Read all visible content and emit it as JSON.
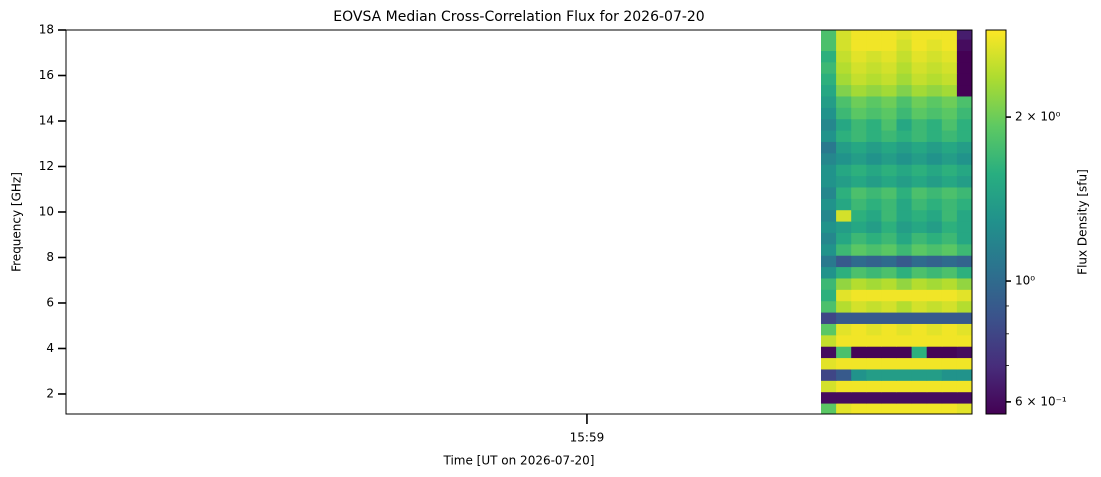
{
  "chart_data": {
    "type": "heatmap",
    "title": "EOVSA Median Cross-Correlation Flux for 2026-07-20",
    "xlabel": "Time [UT on 2026-07-20]",
    "ylabel": "Frequency [GHz]",
    "colorbar_label": "Flux Density [sfu]",
    "colormap": "viridis",
    "clog": true,
    "clim": [
      0.57,
      2.89
    ],
    "cticks": [
      {
        "value": 0.6,
        "label": "6 × 10⁻¹"
      },
      {
        "value": 1,
        "label": "10⁰"
      },
      {
        "value": 2,
        "label": "2 × 10⁰"
      }
    ],
    "cticks_minor": [
      0.7,
      0.8,
      0.9
    ],
    "xlim": [
      57505.5,
      57565.5
    ],
    "xticks": [
      {
        "value": 57540,
        "label": "15:59"
      }
    ],
    "ylim": [
      1.12,
      18
    ],
    "yticks": [
      2,
      4,
      6,
      8,
      10,
      12,
      14,
      16,
      18
    ],
    "x": [
      57556,
      57557,
      57558,
      57559,
      57560,
      57561,
      57562,
      57563,
      57564,
      57565
    ],
    "y": [
      1.35,
      1.85,
      2.35,
      2.85,
      3.35,
      3.85,
      4.35,
      4.85,
      5.35,
      5.85,
      6.35,
      6.85,
      7.35,
      7.85,
      8.35,
      8.85,
      9.35,
      9.85,
      10.35,
      10.85,
      11.35,
      11.85,
      12.35,
      12.85,
      13.35,
      13.85,
      14.35,
      14.85,
      15.35,
      15.85,
      16.35,
      16.85,
      17.35,
      17.85
    ],
    "values": [
      [
        1.9,
        2.7,
        2.8,
        2.8,
        2.8,
        2.8,
        2.8,
        2.8,
        2.8,
        2.7
      ],
      [
        0.6,
        0.6,
        0.6,
        0.6,
        0.6,
        0.6,
        0.6,
        0.6,
        0.6,
        0.6
      ],
      [
        2.6,
        2.8,
        2.8,
        2.8,
        2.8,
        2.8,
        2.8,
        2.8,
        2.8,
        2.8
      ],
      [
        0.8,
        0.9,
        1.3,
        1.4,
        1.4,
        1.4,
        1.4,
        1.4,
        1.3,
        1.3
      ],
      [
        2.7,
        2.8,
        2.8,
        2.8,
        2.8,
        2.8,
        2.8,
        2.8,
        2.8,
        2.8
      ],
      [
        0.6,
        1.8,
        0.58,
        0.58,
        0.58,
        0.58,
        1.6,
        0.58,
        0.58,
        0.6
      ],
      [
        2.5,
        2.8,
        2.8,
        2.8,
        2.8,
        2.8,
        2.8,
        2.8,
        2.8,
        2.8
      ],
      [
        1.9,
        2.7,
        2.8,
        2.7,
        2.8,
        2.7,
        2.8,
        2.7,
        2.8,
        2.7
      ],
      [
        0.8,
        0.9,
        0.9,
        0.9,
        0.9,
        0.9,
        0.9,
        0.9,
        0.9,
        0.9
      ],
      [
        1.8,
        2.4,
        2.6,
        2.5,
        2.6,
        2.4,
        2.6,
        2.5,
        2.6,
        2.4
      ],
      [
        1.6,
        2.7,
        2.8,
        2.8,
        2.8,
        2.8,
        2.8,
        2.8,
        2.8,
        2.7
      ],
      [
        1.7,
        2.2,
        2.4,
        2.3,
        2.4,
        2.2,
        2.4,
        2.3,
        2.4,
        2.2
      ],
      [
        1.3,
        1.6,
        1.8,
        1.7,
        1.8,
        1.6,
        1.8,
        1.7,
        1.8,
        1.6
      ],
      [
        1.1,
        0.9,
        1.0,
        0.95,
        1.0,
        0.9,
        1.0,
        0.95,
        1.0,
        0.95
      ],
      [
        1.3,
        1.7,
        1.9,
        1.8,
        1.9,
        1.7,
        1.9,
        1.8,
        1.9,
        1.7
      ],
      [
        1.2,
        1.5,
        1.7,
        1.6,
        1.7,
        1.5,
        1.7,
        1.6,
        1.7,
        1.5
      ],
      [
        1.3,
        1.4,
        1.5,
        1.4,
        1.6,
        1.4,
        1.5,
        1.4,
        1.6,
        1.5
      ],
      [
        1.2,
        2.6,
        1.6,
        1.5,
        1.7,
        1.5,
        1.6,
        1.5,
        1.7,
        1.5
      ],
      [
        1.3,
        1.5,
        1.7,
        1.6,
        1.7,
        1.5,
        1.7,
        1.6,
        1.7,
        1.6
      ],
      [
        1.2,
        1.6,
        1.8,
        1.7,
        1.8,
        1.6,
        1.8,
        1.7,
        1.8,
        1.7
      ],
      [
        1.3,
        1.4,
        1.5,
        1.4,
        1.5,
        1.4,
        1.5,
        1.4,
        1.5,
        1.4
      ],
      [
        1.3,
        1.5,
        1.6,
        1.5,
        1.6,
        1.5,
        1.6,
        1.5,
        1.6,
        1.5
      ],
      [
        1.2,
        1.3,
        1.4,
        1.3,
        1.4,
        1.3,
        1.4,
        1.3,
        1.4,
        1.3
      ],
      [
        1.1,
        1.4,
        1.5,
        1.4,
        1.5,
        1.4,
        1.5,
        1.4,
        1.5,
        1.4
      ],
      [
        1.3,
        1.6,
        1.7,
        1.6,
        1.7,
        1.6,
        1.7,
        1.6,
        1.7,
        1.6
      ],
      [
        1.2,
        1.5,
        1.7,
        1.6,
        1.8,
        1.5,
        1.7,
        1.6,
        1.8,
        1.6
      ],
      [
        1.3,
        1.7,
        1.9,
        1.8,
        1.9,
        1.7,
        1.9,
        1.8,
        1.9,
        1.7
      ],
      [
        1.4,
        1.8,
        2.0,
        1.9,
        2.0,
        1.8,
        2.0,
        1.9,
        2.0,
        1.8
      ],
      [
        1.5,
        2.1,
        2.3,
        2.2,
        2.3,
        2.1,
        2.3,
        2.2,
        2.3,
        0.57
      ],
      [
        1.6,
        2.3,
        2.5,
        2.4,
        2.5,
        2.3,
        2.5,
        2.4,
        2.5,
        0.57
      ],
      [
        1.7,
        2.4,
        2.6,
        2.5,
        2.6,
        2.4,
        2.6,
        2.5,
        2.6,
        0.57
      ],
      [
        1.6,
        2.5,
        2.7,
        2.6,
        2.7,
        2.5,
        2.7,
        2.6,
        2.7,
        0.57
      ],
      [
        1.8,
        2.6,
        2.8,
        2.8,
        2.8,
        2.6,
        2.8,
        2.7,
        2.8,
        0.6
      ],
      [
        1.8,
        2.6,
        2.8,
        2.8,
        2.8,
        2.7,
        2.8,
        2.8,
        2.8,
        0.65
      ]
    ]
  }
}
